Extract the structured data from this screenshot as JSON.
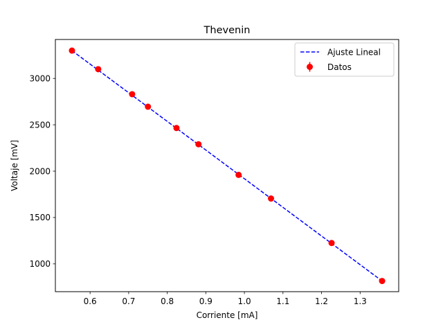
{
  "chart_data": {
    "type": "scatter",
    "title": "Thevenin",
    "xlabel": "Corriente [mA]",
    "ylabel": "Voltaje [mV]",
    "xlim": [
      0.51,
      1.4
    ],
    "ylim": [
      700,
      3420
    ],
    "xticks": [
      0.6,
      0.7,
      0.8,
      0.9,
      1.0,
      1.1,
      1.2,
      1.3
    ],
    "xtick_labels": [
      "0.6",
      "0.7",
      "0.8",
      "0.9",
      "1.0",
      "1.1",
      "1.2",
      "1.3"
    ],
    "yticks": [
      1000,
      1500,
      2000,
      2500,
      3000
    ],
    "ytick_labels": [
      "1000",
      "1500",
      "2000",
      "2500",
      "3000"
    ],
    "grid": false,
    "legend_position": "top-right",
    "series": [
      {
        "name": "Ajuste Lineal",
        "kind": "line",
        "style": "dashed",
        "color": "#0000ff",
        "x": [
          0.553,
          1.357
        ],
        "y": [
          3300,
          815
        ]
      },
      {
        "name": "Datos",
        "kind": "errorbar-scatter",
        "color": "#ff0000",
        "x": [
          0.553,
          0.621,
          0.709,
          0.75,
          0.824,
          0.881,
          0.985,
          1.069,
          1.226,
          1.357
        ],
        "y": [
          3300,
          3100,
          2830,
          2695,
          2465,
          2290,
          1960,
          1705,
          1225,
          815
        ]
      }
    ]
  }
}
